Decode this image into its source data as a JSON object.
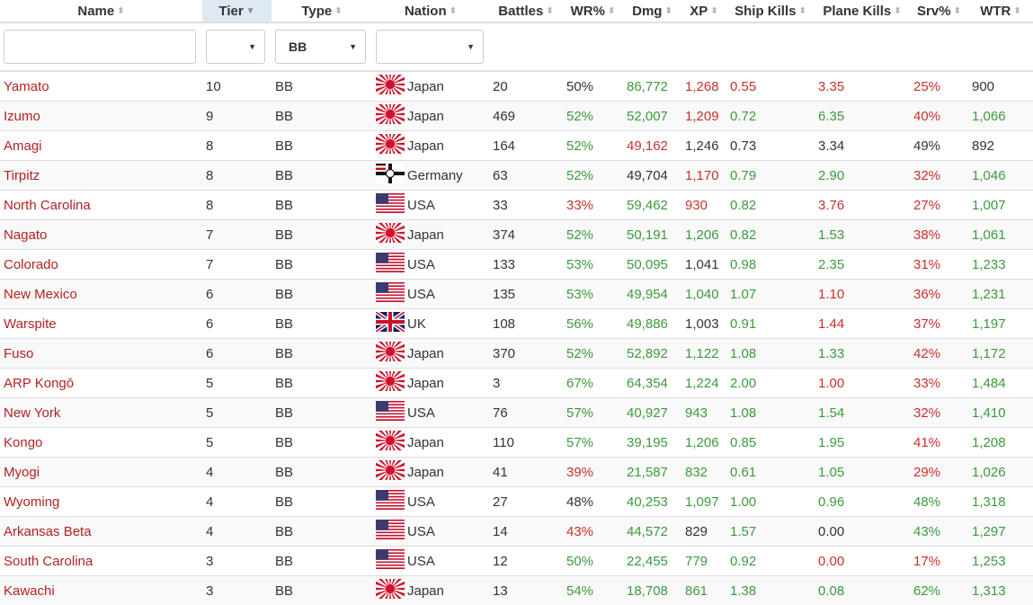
{
  "headers": [
    "Name",
    "Tier",
    "Type",
    "Nation",
    "Battles",
    "WR%",
    "Dmg",
    "XP",
    "Ship Kills",
    "Plane Kills",
    "Srv%",
    "WTR"
  ],
  "sorted_column": 1,
  "filters": {
    "name_value": "",
    "tier_value": "",
    "type_value": "BB",
    "nation_value": ""
  },
  "colors": {
    "good": "#3c9a3c",
    "bad": "#c9302c",
    "neutral": "#333333",
    "name": "#b22222",
    "sorted_header_bg": "#dfe9f3"
  },
  "rows": [
    {
      "name": "Yamato",
      "tier": "10",
      "type": "BB",
      "nation": "Japan",
      "flag": "japan",
      "battles": "20",
      "wr": "50%",
      "wr_c": "n",
      "dmg": "86,772",
      "dmg_c": "g",
      "xp": "1,268",
      "xp_c": "r",
      "sk": "0.55",
      "sk_c": "r",
      "pk": "3.35",
      "pk_c": "r",
      "srv": "25%",
      "srv_c": "r",
      "wtr": "900",
      "wtr_c": "n"
    },
    {
      "name": "Izumo",
      "tier": "9",
      "type": "BB",
      "nation": "Japan",
      "flag": "japan",
      "battles": "469",
      "wr": "52%",
      "wr_c": "g",
      "dmg": "52,007",
      "dmg_c": "g",
      "xp": "1,209",
      "xp_c": "r",
      "sk": "0.72",
      "sk_c": "g",
      "pk": "6.35",
      "pk_c": "g",
      "srv": "40%",
      "srv_c": "r",
      "wtr": "1,066",
      "wtr_c": "g"
    },
    {
      "name": "Amagi",
      "tier": "8",
      "type": "BB",
      "nation": "Japan",
      "flag": "japan",
      "battles": "164",
      "wr": "52%",
      "wr_c": "g",
      "dmg": "49,162",
      "dmg_c": "r",
      "xp": "1,246",
      "xp_c": "n",
      "sk": "0.73",
      "sk_c": "n",
      "pk": "3.34",
      "pk_c": "n",
      "srv": "49%",
      "srv_c": "n",
      "wtr": "892",
      "wtr_c": "n"
    },
    {
      "name": "Tirpitz",
      "tier": "8",
      "type": "BB",
      "nation": "Germany",
      "flag": "germany",
      "battles": "63",
      "wr": "52%",
      "wr_c": "g",
      "dmg": "49,704",
      "dmg_c": "n",
      "xp": "1,170",
      "xp_c": "r",
      "sk": "0.79",
      "sk_c": "g",
      "pk": "2.90",
      "pk_c": "g",
      "srv": "32%",
      "srv_c": "r",
      "wtr": "1,046",
      "wtr_c": "g"
    },
    {
      "name": "North Carolina",
      "tier": "8",
      "type": "BB",
      "nation": "USA",
      "flag": "usa",
      "battles": "33",
      "wr": "33%",
      "wr_c": "r",
      "dmg": "59,462",
      "dmg_c": "g",
      "xp": "930",
      "xp_c": "r",
      "sk": "0.82",
      "sk_c": "g",
      "pk": "3.76",
      "pk_c": "r",
      "srv": "27%",
      "srv_c": "r",
      "wtr": "1,007",
      "wtr_c": "g"
    },
    {
      "name": "Nagato",
      "tier": "7",
      "type": "BB",
      "nation": "Japan",
      "flag": "japan",
      "battles": "374",
      "wr": "52%",
      "wr_c": "g",
      "dmg": "50,191",
      "dmg_c": "g",
      "xp": "1,206",
      "xp_c": "g",
      "sk": "0.82",
      "sk_c": "g",
      "pk": "1.53",
      "pk_c": "g",
      "srv": "38%",
      "srv_c": "r",
      "wtr": "1,061",
      "wtr_c": "g"
    },
    {
      "name": "Colorado",
      "tier": "7",
      "type": "BB",
      "nation": "USA",
      "flag": "usa",
      "battles": "133",
      "wr": "53%",
      "wr_c": "g",
      "dmg": "50,095",
      "dmg_c": "g",
      "xp": "1,041",
      "xp_c": "n",
      "sk": "0.98",
      "sk_c": "g",
      "pk": "2.35",
      "pk_c": "g",
      "srv": "31%",
      "srv_c": "r",
      "wtr": "1,233",
      "wtr_c": "g"
    },
    {
      "name": "New Mexico",
      "tier": "6",
      "type": "BB",
      "nation": "USA",
      "flag": "usa",
      "battles": "135",
      "wr": "53%",
      "wr_c": "g",
      "dmg": "49,954",
      "dmg_c": "g",
      "xp": "1,040",
      "xp_c": "g",
      "sk": "1.07",
      "sk_c": "g",
      "pk": "1.10",
      "pk_c": "r",
      "srv": "36%",
      "srv_c": "r",
      "wtr": "1,231",
      "wtr_c": "g"
    },
    {
      "name": "Warspite",
      "tier": "6",
      "type": "BB",
      "nation": "UK",
      "flag": "uk",
      "battles": "108",
      "wr": "56%",
      "wr_c": "g",
      "dmg": "49,886",
      "dmg_c": "g",
      "xp": "1,003",
      "xp_c": "n",
      "sk": "0.91",
      "sk_c": "g",
      "pk": "1.44",
      "pk_c": "r",
      "srv": "37%",
      "srv_c": "r",
      "wtr": "1,197",
      "wtr_c": "g"
    },
    {
      "name": "Fuso",
      "tier": "6",
      "type": "BB",
      "nation": "Japan",
      "flag": "japan",
      "battles": "370",
      "wr": "52%",
      "wr_c": "g",
      "dmg": "52,892",
      "dmg_c": "g",
      "xp": "1,122",
      "xp_c": "g",
      "sk": "1.08",
      "sk_c": "g",
      "pk": "1.33",
      "pk_c": "g",
      "srv": "42%",
      "srv_c": "r",
      "wtr": "1,172",
      "wtr_c": "g"
    },
    {
      "name": "ARP Kongō",
      "tier": "5",
      "type": "BB",
      "nation": "Japan",
      "flag": "japan",
      "battles": "3",
      "wr": "67%",
      "wr_c": "g",
      "dmg": "64,354",
      "dmg_c": "g",
      "xp": "1,224",
      "xp_c": "g",
      "sk": "2.00",
      "sk_c": "g",
      "pk": "1.00",
      "pk_c": "r",
      "srv": "33%",
      "srv_c": "r",
      "wtr": "1,484",
      "wtr_c": "g"
    },
    {
      "name": "New York",
      "tier": "5",
      "type": "BB",
      "nation": "USA",
      "flag": "usa",
      "battles": "76",
      "wr": "57%",
      "wr_c": "g",
      "dmg": "40,927",
      "dmg_c": "g",
      "xp": "943",
      "xp_c": "g",
      "sk": "1.08",
      "sk_c": "g",
      "pk": "1.54",
      "pk_c": "g",
      "srv": "32%",
      "srv_c": "r",
      "wtr": "1,410",
      "wtr_c": "g"
    },
    {
      "name": "Kongo",
      "tier": "5",
      "type": "BB",
      "nation": "Japan",
      "flag": "japan",
      "battles": "110",
      "wr": "57%",
      "wr_c": "g",
      "dmg": "39,195",
      "dmg_c": "g",
      "xp": "1,206",
      "xp_c": "g",
      "sk": "0.85",
      "sk_c": "g",
      "pk": "1.95",
      "pk_c": "g",
      "srv": "41%",
      "srv_c": "r",
      "wtr": "1,208",
      "wtr_c": "g"
    },
    {
      "name": "Myogi",
      "tier": "4",
      "type": "BB",
      "nation": "Japan",
      "flag": "japan",
      "battles": "41",
      "wr": "39%",
      "wr_c": "r",
      "dmg": "21,587",
      "dmg_c": "g",
      "xp": "832",
      "xp_c": "g",
      "sk": "0.61",
      "sk_c": "g",
      "pk": "1.05",
      "pk_c": "g",
      "srv": "29%",
      "srv_c": "r",
      "wtr": "1,026",
      "wtr_c": "g"
    },
    {
      "name": "Wyoming",
      "tier": "4",
      "type": "BB",
      "nation": "USA",
      "flag": "usa",
      "battles": "27",
      "wr": "48%",
      "wr_c": "n",
      "dmg": "40,253",
      "dmg_c": "g",
      "xp": "1,097",
      "xp_c": "g",
      "sk": "1.00",
      "sk_c": "g",
      "pk": "0.96",
      "pk_c": "g",
      "srv": "48%",
      "srv_c": "g",
      "wtr": "1,318",
      "wtr_c": "g"
    },
    {
      "name": "Arkansas Beta",
      "tier": "4",
      "type": "BB",
      "nation": "USA",
      "flag": "usa",
      "battles": "14",
      "wr": "43%",
      "wr_c": "r",
      "dmg": "44,572",
      "dmg_c": "g",
      "xp": "829",
      "xp_c": "n",
      "sk": "1.57",
      "sk_c": "g",
      "pk": "0.00",
      "pk_c": "n",
      "srv": "43%",
      "srv_c": "g",
      "wtr": "1,297",
      "wtr_c": "g"
    },
    {
      "name": "South Carolina",
      "tier": "3",
      "type": "BB",
      "nation": "USA",
      "flag": "usa",
      "battles": "12",
      "wr": "50%",
      "wr_c": "g",
      "dmg": "22,455",
      "dmg_c": "g",
      "xp": "779",
      "xp_c": "g",
      "sk": "0.92",
      "sk_c": "g",
      "pk": "0.00",
      "pk_c": "r",
      "srv": "17%",
      "srv_c": "r",
      "wtr": "1,253",
      "wtr_c": "g"
    },
    {
      "name": "Kawachi",
      "tier": "3",
      "type": "BB",
      "nation": "Japan",
      "flag": "japan",
      "battles": "13",
      "wr": "54%",
      "wr_c": "g",
      "dmg": "18,708",
      "dmg_c": "g",
      "xp": "861",
      "xp_c": "g",
      "sk": "1.38",
      "sk_c": "g",
      "pk": "0.08",
      "pk_c": "g",
      "srv": "62%",
      "srv_c": "g",
      "wtr": "1,313",
      "wtr_c": "g"
    }
  ]
}
